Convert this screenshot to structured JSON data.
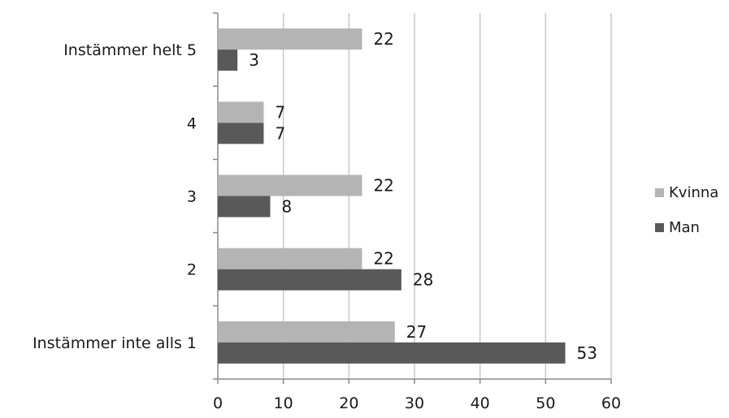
{
  "chart_data": {
    "type": "bar",
    "orientation": "horizontal",
    "categories": [
      "Instämmer inte alls 1",
      "2",
      "3",
      "4",
      "Instämmer helt 5"
    ],
    "series": [
      {
        "name": "Kvinna",
        "values": [
          27,
          22,
          22,
          7,
          22
        ],
        "color": "#b4b4b4"
      },
      {
        "name": "Man",
        "values": [
          53,
          28,
          8,
          7,
          3
        ],
        "color": "#595959"
      }
    ],
    "xlim": [
      0,
      60
    ],
    "xticks": [
      0,
      10,
      20,
      30,
      40,
      50,
      60
    ],
    "grid": true,
    "legend_position": "right",
    "title": "",
    "xlabel": "",
    "ylabel": ""
  }
}
